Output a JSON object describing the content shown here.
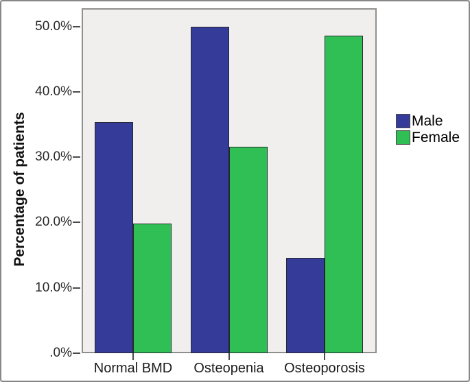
{
  "figure": {
    "background": "#ffffff",
    "frame_border_color": "#878787"
  },
  "chart_data": {
    "type": "bar",
    "title": "",
    "categories": [
      "Normal BMD",
      "Osteopenia",
      "Osteoporosis"
    ],
    "series": [
      {
        "name": "Male",
        "color": "#353b98",
        "values": [
          35.4,
          50.0,
          14.6
        ]
      },
      {
        "name": "Female",
        "color": "#2fbf54",
        "values": [
          19.8,
          31.6,
          48.6
        ]
      }
    ],
    "xlabel": "",
    "ylabel": "Percentage of patients",
    "values_unit": "%",
    "ylim": [
      0,
      52.8
    ],
    "y_ticks": [
      {
        "value": 0,
        "label": ".0%"
      },
      {
        "value": 10,
        "label": "10.0%"
      },
      {
        "value": 20,
        "label": "20.0%"
      },
      {
        "value": 30,
        "label": "30.0%"
      },
      {
        "value": 40,
        "label": "40.0%"
      },
      {
        "value": 50,
        "label": "50.0%"
      }
    ],
    "grid": "off",
    "legend_position": "right",
    "plot_background": "#f0efed"
  }
}
